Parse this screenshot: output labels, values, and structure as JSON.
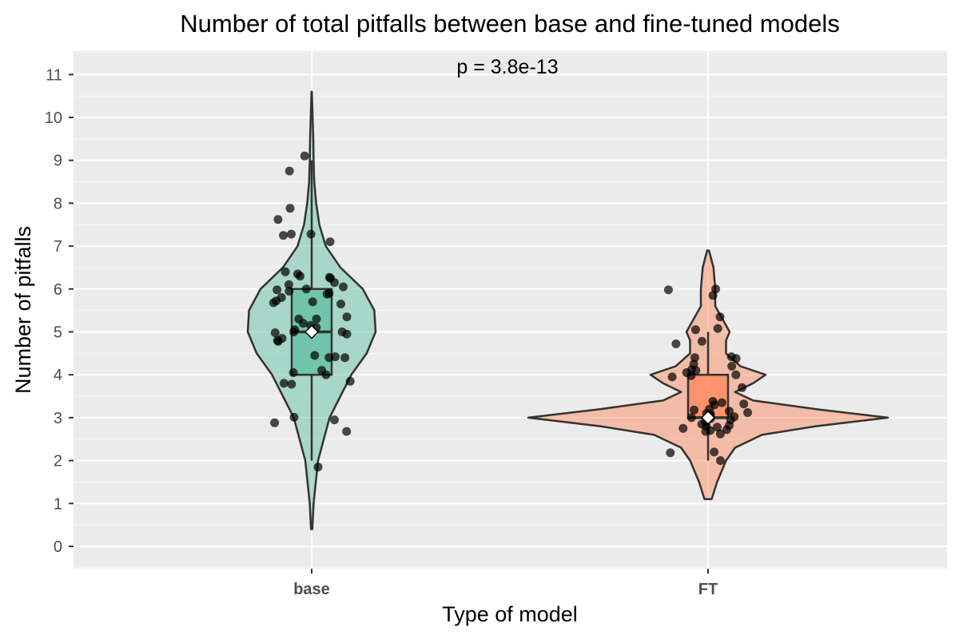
{
  "chart_data": {
    "type": "violin",
    "title": "Number of total pitfalls between base and fine-tuned models",
    "xlabel": "Type of model",
    "ylabel": "Number of pitfalls",
    "annotation": "p = 3.8e-13",
    "ylim": [
      -0.5,
      11.5
    ],
    "yticks": [
      0,
      1,
      2,
      3,
      4,
      5,
      6,
      7,
      8,
      9,
      10,
      11
    ],
    "grid": true,
    "legend": "none",
    "categories": [
      "base",
      "FT"
    ],
    "groups": [
      {
        "category": "base",
        "color": "#66c2a5",
        "violin_range": [
          0.4,
          10.6
        ],
        "box": {
          "whisker_low": 2,
          "q1": 4,
          "median": 5,
          "q3": 6,
          "whisker_high": 9
        },
        "mean": 5,
        "density": [
          [
            0.4,
            0.01
          ],
          [
            1,
            0.03
          ],
          [
            2,
            0.1
          ],
          [
            3,
            0.28
          ],
          [
            3.5,
            0.45
          ],
          [
            4,
            0.62
          ],
          [
            4.5,
            0.86
          ],
          [
            5,
            1.0
          ],
          [
            5.5,
            0.98
          ],
          [
            6,
            0.8
          ],
          [
            6.5,
            0.45
          ],
          [
            7,
            0.22
          ],
          [
            7.5,
            0.12
          ],
          [
            8,
            0.07
          ],
          [
            8.5,
            0.04
          ],
          [
            9,
            0.03
          ],
          [
            9.5,
            0.025
          ],
          [
            10,
            0.015
          ],
          [
            10.6,
            0.003
          ]
        ],
        "points": [
          9.1,
          8.75,
          7.88,
          7.62,
          7.28,
          7.25,
          7.28,
          7.1,
          6.4,
          6.35,
          6.3,
          6.27,
          6.25,
          6.15,
          6.1,
          6.05,
          6.0,
          5.98,
          5.95,
          5.9,
          5.88,
          5.8,
          5.72,
          5.7,
          5.68,
          5.65,
          5.35,
          5.3,
          5.3,
          5.2,
          5.15,
          5.1,
          5.05,
          5.0,
          5.0,
          4.98,
          4.95,
          4.85,
          4.8,
          4.78,
          4.45,
          4.42,
          4.4,
          4.4,
          4.1,
          4.05,
          4.0,
          3.85,
          3.8,
          3.78,
          3.01,
          2.95,
          2.88,
          2.68,
          1.85
        ]
      },
      {
        "category": "FT",
        "color": "#fc8d62",
        "violin_range": [
          1.1,
          6.9
        ],
        "box": {
          "whisker_low": 2,
          "q1": 3,
          "median": 3,
          "q3": 4,
          "whisker_high": 5
        },
        "mean": 3,
        "density": [
          [
            1.1,
            0.02
          ],
          [
            1.5,
            0.05
          ],
          [
            2,
            0.1
          ],
          [
            2.3,
            0.15
          ],
          [
            2.6,
            0.3
          ],
          [
            2.8,
            0.6
          ],
          [
            3.0,
            1.0
          ],
          [
            3.2,
            0.6
          ],
          [
            3.4,
            0.25
          ],
          [
            3.6,
            0.15
          ],
          [
            3.8,
            0.25
          ],
          [
            4.0,
            0.32
          ],
          [
            4.2,
            0.18
          ],
          [
            4.5,
            0.1
          ],
          [
            4.8,
            0.1
          ],
          [
            5.0,
            0.12
          ],
          [
            5.3,
            0.08
          ],
          [
            5.6,
            0.04
          ],
          [
            6.0,
            0.04
          ],
          [
            6.5,
            0.03
          ],
          [
            6.9,
            0.005
          ]
        ],
        "points": [
          6.0,
          5.98,
          5.85,
          5.35,
          5.08,
          5.05,
          4.78,
          4.72,
          4.42,
          4.4,
          4.38,
          4.25,
          4.2,
          4.12,
          4.1,
          4.05,
          4.0,
          3.98,
          3.95,
          3.7,
          3.38,
          3.35,
          3.32,
          3.3,
          3.2,
          3.18,
          3.15,
          3.12,
          3.1,
          3.08,
          3.05,
          3.02,
          3.0,
          2.98,
          2.95,
          2.9,
          2.85,
          2.82,
          2.8,
          2.78,
          2.75,
          2.72,
          2.7,
          2.68,
          2.62,
          2.2,
          2.18,
          2.0
        ]
      }
    ]
  }
}
